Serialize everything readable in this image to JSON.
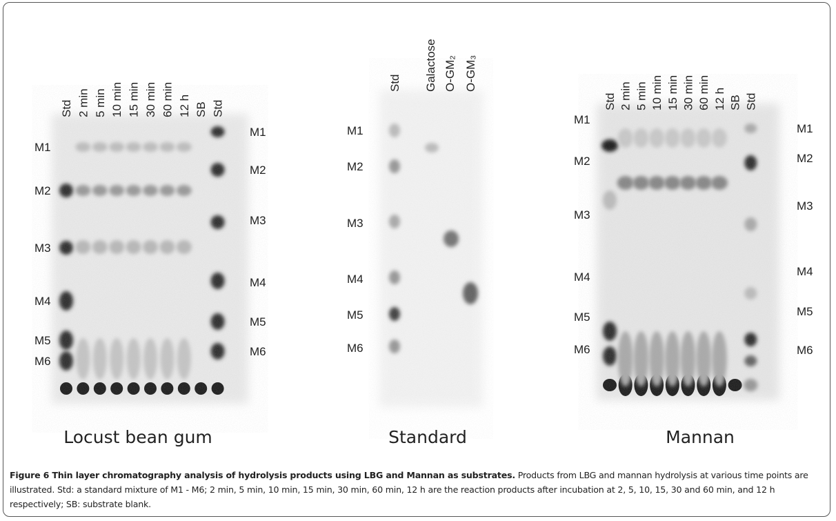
{
  "figure": {
    "panels": [
      {
        "title": "Locust bean gum",
        "lanes": [
          "Std",
          "2 min",
          "5 min",
          "10 min",
          "15 min",
          "30 min",
          "60 min",
          "12 h",
          "SB",
          "Std"
        ],
        "left_markers": [
          "M1",
          "M2",
          "M3",
          "M4",
          "M5",
          "M6"
        ],
        "right_markers": [
          "M1",
          "M2",
          "M3",
          "M4",
          "M5",
          "M6"
        ]
      },
      {
        "title": "Standard",
        "lanes": [
          "Std",
          "Galactose",
          "O-GM₂",
          "O-GM₃"
        ],
        "left_markers": [
          "M1",
          "M2",
          "M3",
          "M4",
          "M5",
          "M6"
        ]
      },
      {
        "title": "Mannan",
        "lanes": [
          "Std",
          "2 min",
          "5 min",
          "10 min",
          "15 min",
          "30 min",
          "60 min",
          "12 h",
          "SB",
          "Std"
        ],
        "left_markers": [
          "M1",
          "M2",
          "M3",
          "M4",
          "M5",
          "M6"
        ],
        "right_markers": [
          "M1",
          "M2",
          "M3",
          "M4",
          "M5",
          "M6"
        ]
      }
    ],
    "caption": {
      "bold": "Figure 6 Thin layer chromatography analysis of hydrolysis products using LBG and Mannan as substrates.",
      "text": " Products from LBG and mannan hydrolysis at various time points are illustrated. Std: a standard mixture of M1 - M6; 2 min, 5 min, 10 min, 15 min, 30 min, 60 min, 12 h are the reaction products after incubation at 2, 5, 10, 15, 30 and 60 min, and 12 h respectively; SB: substrate blank."
    }
  }
}
